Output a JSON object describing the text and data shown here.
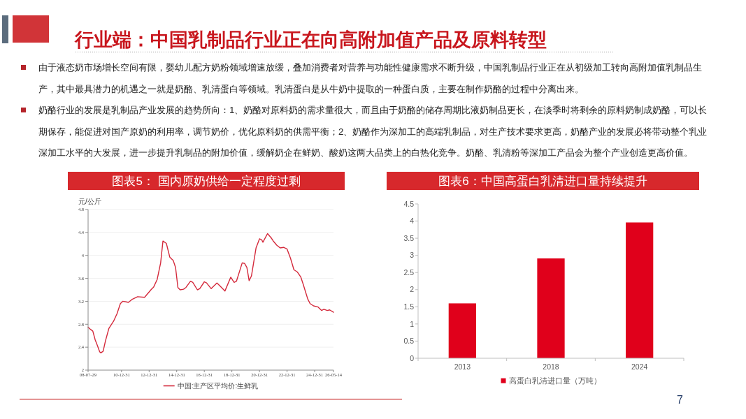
{
  "chart_data": [
    {
      "type": "other",
      "title": "行业端：中国乳制品行业正在向高附加值产品及原料转型",
      "annotations": [
        "由于液态奶市场增长空间有限，婴幼儿配方奶粉领域增速放缓，叠加消费者对营养与功能性健康需求不断升级，中国乳制品行业正在从初级加工转向高附加值乳制品生产，其中最具潜力的机遇之一就是奶酪、乳清蛋白等领域。乳清蛋白是从牛奶中提取的一种蛋白质，主要在制作奶酪的过程中分离出来。",
        "奶酪行业的发展是乳制品产业发展的趋势所向：1、奶酪对原料奶的需求量很大，而且由于奶酪的储存周期比液奶制品更长，在淡季时将剩余的原料奶制成奶酪，可以长期保存，能促进对国产原奶的利用率，调节奶价，优化原料奶的供需平衡；2、奶酪作为深加工的高端乳制品，对生产技术要求更高，奶酪产业的发展必将带动整个乳业深加工水平的大发展，进一步提升乳制品的附加价值，缓解奶企在鲜奶、酸奶这两大品类上的白热化竞争。奶酪、乳清粉等深加工产品会为整个产业创造更高价值。",
        "7"
      ]
    },
    {
      "type": "line",
      "title": "图表5： 国内原奶供给一定程度过剩",
      "ylabel": "元/公斤",
      "x": [
        "2008-07-29",
        "2008-10",
        "2008-12",
        "2009-02",
        "2009-04",
        "2009-06",
        "2009-07",
        "2009-09",
        "2009-11",
        "2010-02",
        "2010-06",
        "2010-09",
        "2010-12",
        "2011-02",
        "2011-05",
        "2011-07",
        "2011-10",
        "2012-03",
        "2012-09",
        "2012-12",
        "2013-03",
        "2013-05",
        "2013-08",
        "2013-11",
        "2014-01",
        "2014-04",
        "2014-07",
        "2014-10",
        "2014-12",
        "2015-02",
        "2015-04",
        "2015-07",
        "2015-09",
        "2016-01",
        "2016-03",
        "2016-07",
        "2016-09",
        "2017-01",
        "2017-03",
        "2017-07",
        "2017-09",
        "2017-12",
        "2018-03",
        "2018-07",
        "2018-12",
        "2019-03",
        "2019-05",
        "2019-10",
        "2019-12",
        "2020-02",
        "2020-04",
        "2020-06",
        "2020-10",
        "2021-01",
        "2021-03",
        "2021-04",
        "2021-08",
        "2021-11",
        "2022-01",
        "2022-04",
        "2022-07",
        "2022-10",
        "2023-01",
        "2023-04",
        "2023-07",
        "2023-10",
        "2024-01",
        "2024-03",
        "2024-05",
        "2024-07",
        "2024-09",
        "2024-12",
        "2025-04",
        "2025-07",
        "2025-09",
        "2025-12",
        "2026-02",
        "2026-05-14"
      ],
      "series": [
        {
          "name": "中国:主产区平均价:生鲜乳",
          "color": "#d42a3c",
          "values": [
            2.75,
            2.71,
            2.68,
            2.53,
            2.43,
            2.32,
            2.3,
            2.33,
            2.51,
            2.73,
            2.85,
            2.98,
            3.16,
            3.2,
            3.19,
            3.18,
            3.23,
            3.28,
            3.27,
            3.34,
            3.41,
            3.45,
            3.58,
            3.87,
            4.25,
            4.21,
            3.97,
            3.91,
            3.79,
            3.44,
            3.4,
            3.41,
            3.44,
            3.55,
            3.53,
            3.4,
            3.42,
            3.54,
            3.52,
            3.42,
            3.46,
            3.52,
            3.46,
            3.38,
            3.62,
            3.53,
            3.55,
            3.87,
            3.86,
            3.79,
            3.56,
            3.64,
            4.13,
            4.29,
            4.27,
            4.23,
            4.38,
            4.31,
            4.25,
            4.18,
            4.13,
            4.14,
            4.11,
            3.95,
            3.75,
            3.71,
            3.62,
            3.5,
            3.37,
            3.24,
            3.16,
            3.12,
            3.1,
            3.04,
            3.06,
            3.04,
            3.05,
            3.01
          ]
        }
      ],
      "xlim": [
        "2008-07-29",
        "2026-05-14"
      ],
      "xticks": [
        {
          "value": "2008-07-29",
          "label": "08-07-29"
        },
        {
          "value": "2010-12-31",
          "label": "10-12-31"
        },
        {
          "value": "2012-12-31",
          "label": "12-12-31"
        },
        {
          "value": "2014-12-31",
          "label": "14-12-31"
        },
        {
          "value": "2016-12-31",
          "label": "16-12-31"
        },
        {
          "value": "2018-12-31",
          "label": "18-12-31"
        },
        {
          "value": "2020-12-31",
          "label": "20-12-31"
        },
        {
          "value": "2022-12-31",
          "label": "22-12-31"
        },
        {
          "value": "2024-12-31",
          "label": "24-12-31"
        },
        {
          "value": "2026-05-14",
          "label": "26-05-14"
        }
      ],
      "ylim": [
        2,
        4.8
      ],
      "yticks": [
        2,
        2.4,
        2.8,
        3.2,
        3.6,
        4,
        4.4,
        4.8
      ],
      "grid": "y",
      "legend": "bottom"
    },
    {
      "type": "bar",
      "title": "图表6：中国高蛋白乳清进口量持续提升",
      "categories": [
        "2013",
        "2018",
        "2024"
      ],
      "series": [
        {
          "name": "高蛋白乳清进口量（万吨）",
          "color": "#e0001b",
          "values": [
            1.6,
            2.91,
            3.96
          ]
        }
      ],
      "ylim": [
        0,
        4.5
      ],
      "yticks": [
        0,
        0.5,
        1,
        1.5,
        2,
        2.5,
        3,
        3.5,
        4,
        4.5
      ],
      "legend": "bottom"
    }
  ]
}
